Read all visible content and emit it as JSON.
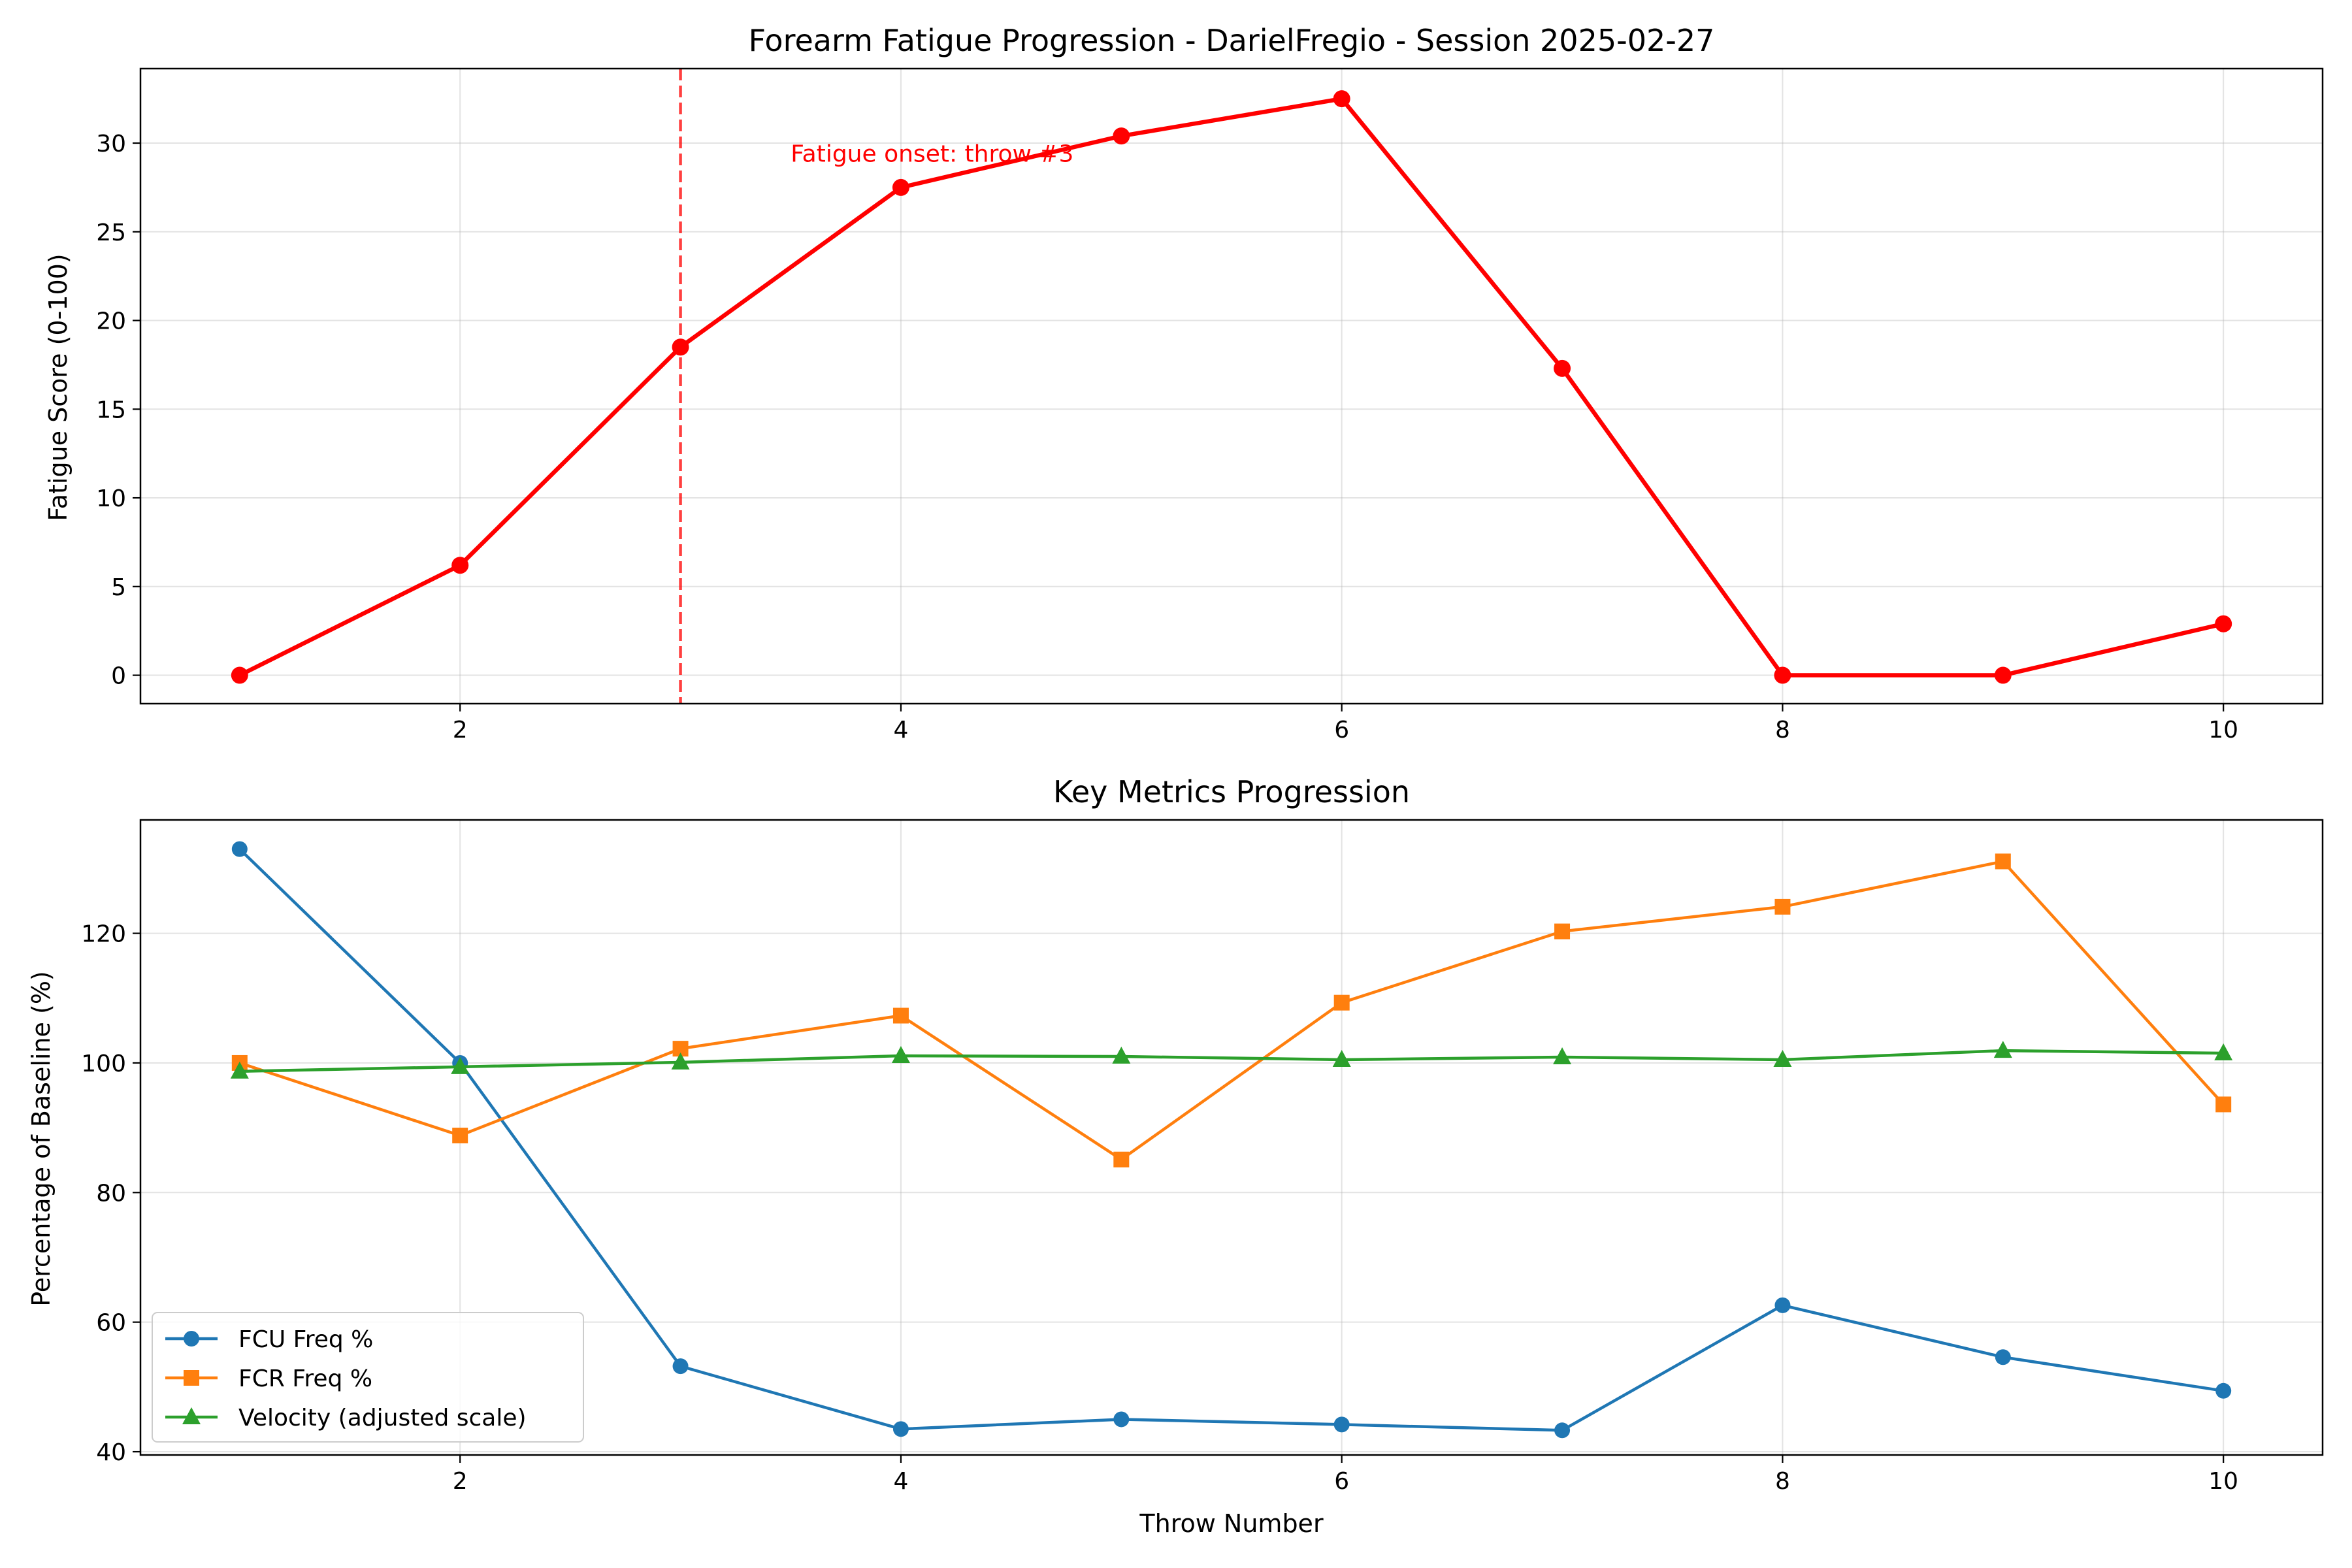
{
  "chart_data": [
    {
      "type": "line",
      "title": "Forearm Fatigue Progression - DarielFregio - Session 2025-02-27",
      "xlabel": "",
      "ylabel": "Fatigue Score (0-100)",
      "xlim": [
        0.55,
        10.45
      ],
      "ylim": [
        -1.6,
        34.2
      ],
      "xticks": [
        2,
        4,
        6,
        8,
        10
      ],
      "yticks": [
        0,
        5,
        10,
        15,
        20,
        25,
        30
      ],
      "grid": true,
      "color": "#ff0000",
      "series": [
        {
          "x": [
            1,
            2,
            3,
            4,
            5,
            6,
            7,
            8,
            9,
            10
          ],
          "values": [
            0.0,
            6.2,
            18.5,
            27.5,
            30.4,
            32.5,
            17.3,
            0.0,
            0.0,
            2.9
          ]
        }
      ],
      "vline": {
        "x": 3,
        "color": "#ff0000",
        "style": "dashed"
      },
      "annotation": {
        "text": "Fatigue onset: throw #3",
        "x": 3.5,
        "y": 29.4,
        "color": "#ff0000"
      }
    },
    {
      "type": "line",
      "title": "Key Metrics Progression",
      "xlabel": "Throw Number",
      "ylabel": "Percentage of Baseline (%)",
      "xlim": [
        0.55,
        10.45
      ],
      "ylim": [
        39.5,
        137.5
      ],
      "xticks": [
        2,
        4,
        6,
        8,
        10
      ],
      "yticks": [
        40,
        60,
        80,
        100,
        120
      ],
      "grid": true,
      "legend": "lower-left",
      "x": [
        1,
        2,
        3,
        4,
        5,
        6,
        7,
        8,
        9,
        10
      ],
      "series": [
        {
          "name": "FCU Freq %",
          "color": "#1f77b4",
          "marker": "circle",
          "values": [
            133.0,
            100.0,
            53.2,
            43.5,
            45.0,
            44.2,
            43.3,
            62.6,
            54.6,
            49.4
          ]
        },
        {
          "name": "FCR Freq %",
          "color": "#ff7f0e",
          "marker": "square",
          "values": [
            100.0,
            88.8,
            102.2,
            107.3,
            85.1,
            109.3,
            120.3,
            124.1,
            131.1,
            93.6
          ]
        },
        {
          "name": "Velocity (adjusted scale)",
          "color": "#2ca02c",
          "marker": "triangle",
          "values": [
            98.7,
            99.4,
            100.1,
            101.1,
            101.0,
            100.5,
            100.9,
            100.5,
            101.9,
            101.5
          ]
        }
      ]
    }
  ]
}
